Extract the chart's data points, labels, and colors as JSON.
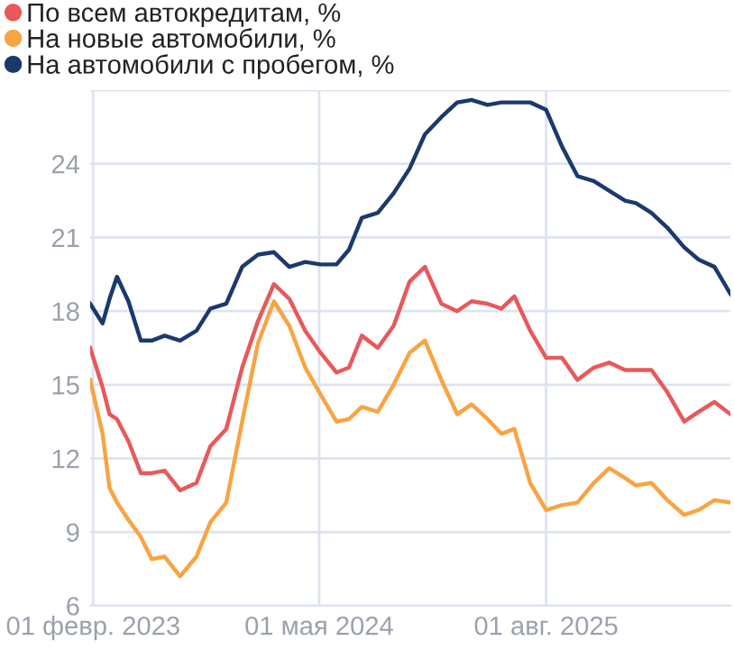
{
  "chart_data": {
    "type": "line",
    "x": [
      "2023-01-26",
      "2023-02-20",
      "2023-03-06",
      "2023-03-21",
      "2023-04-13",
      "2023-05-08",
      "2023-05-30",
      "2023-06-25",
      "2023-07-26",
      "2023-08-28",
      "2023-09-25",
      "2023-10-27",
      "2023-11-28",
      "2023-12-30",
      "2024-01-31",
      "2024-03-02",
      "2024-04-03",
      "2024-05-04",
      "2024-06-05",
      "2024-06-30",
      "2024-07-26",
      "2024-08-27",
      "2024-09-28",
      "2024-10-30",
      "2024-11-30",
      "2025-01-02",
      "2025-02-03",
      "2025-03-04",
      "2025-04-05",
      "2025-05-03",
      "2025-05-29",
      "2025-06-30",
      "2025-08-01",
      "2025-09-02",
      "2025-10-03",
      "2025-11-05",
      "2025-12-06",
      "2026-01-07",
      "2026-01-29",
      "2026-03-01",
      "2026-04-02",
      "2026-05-06",
      "2026-06-04",
      "2026-07-06",
      "2026-08-07"
    ],
    "series": [
      {
        "name": "По всем автокредитам, %",
        "color": "#e8595a",
        "values": [
          16.5,
          14.9,
          13.8,
          13.6,
          12.7,
          11.4,
          11.4,
          11.5,
          10.7,
          11.0,
          12.5,
          13.2,
          15.7,
          17.6,
          19.1,
          18.5,
          17.2,
          16.3,
          15.5,
          15.7,
          17.0,
          16.5,
          17.4,
          19.2,
          19.8,
          18.3,
          18.0,
          18.4,
          18.3,
          18.1,
          18.6,
          17.2,
          16.1,
          16.1,
          15.2,
          15.7,
          15.9,
          15.6,
          15.6,
          15.6,
          14.7,
          13.5,
          13.9,
          14.3,
          13.8
        ]
      },
      {
        "name": "На новые автомобили, %",
        "color": "#f8a443",
        "values": [
          15.2,
          13.0,
          10.8,
          10.2,
          9.5,
          8.8,
          7.9,
          8.0,
          7.2,
          8.0,
          9.4,
          10.2,
          13.5,
          16.7,
          18.4,
          17.4,
          15.7,
          14.6,
          13.5,
          13.6,
          14.1,
          13.9,
          15.0,
          16.3,
          16.8,
          15.2,
          13.8,
          14.2,
          13.6,
          13.0,
          13.2,
          11.0,
          9.9,
          10.1,
          10.2,
          11.0,
          11.6,
          11.2,
          10.9,
          11.0,
          10.3,
          9.7,
          9.9,
          10.3,
          10.2
        ]
      },
      {
        "name": "На автомобили с пробегом, %",
        "color": "#1a3a6e",
        "values": [
          18.3,
          17.5,
          18.5,
          19.4,
          18.4,
          16.8,
          16.8,
          17.0,
          16.8,
          17.2,
          18.1,
          18.3,
          19.8,
          20.3,
          20.4,
          19.8,
          20.0,
          19.9,
          19.9,
          20.5,
          21.8,
          22.0,
          22.8,
          23.8,
          25.2,
          25.9,
          26.5,
          26.6,
          26.4,
          26.5,
          26.5,
          26.5,
          26.2,
          24.7,
          23.5,
          23.3,
          22.9,
          22.5,
          22.4,
          22.0,
          21.4,
          20.6,
          20.1,
          19.8,
          18.7
        ]
      }
    ],
    "xlim": [
      "2023-01-26",
      "2026-08-07"
    ],
    "xticks": [
      {
        "value": "2023-02-01",
        "label": "01 февр. 2023"
      },
      {
        "value": "2024-05-01",
        "label": "01 мая 2024"
      },
      {
        "value": "2025-08-01",
        "label": "01 авг. 2025"
      }
    ],
    "ylim": [
      6,
      27
    ],
    "yticks": [
      6,
      9,
      12,
      15,
      18,
      21,
      24,
      {
        "value": 27,
        "label": null
      }
    ],
    "grid": true,
    "legend": "top left",
    "marker": "none",
    "line_style": "solid"
  }
}
